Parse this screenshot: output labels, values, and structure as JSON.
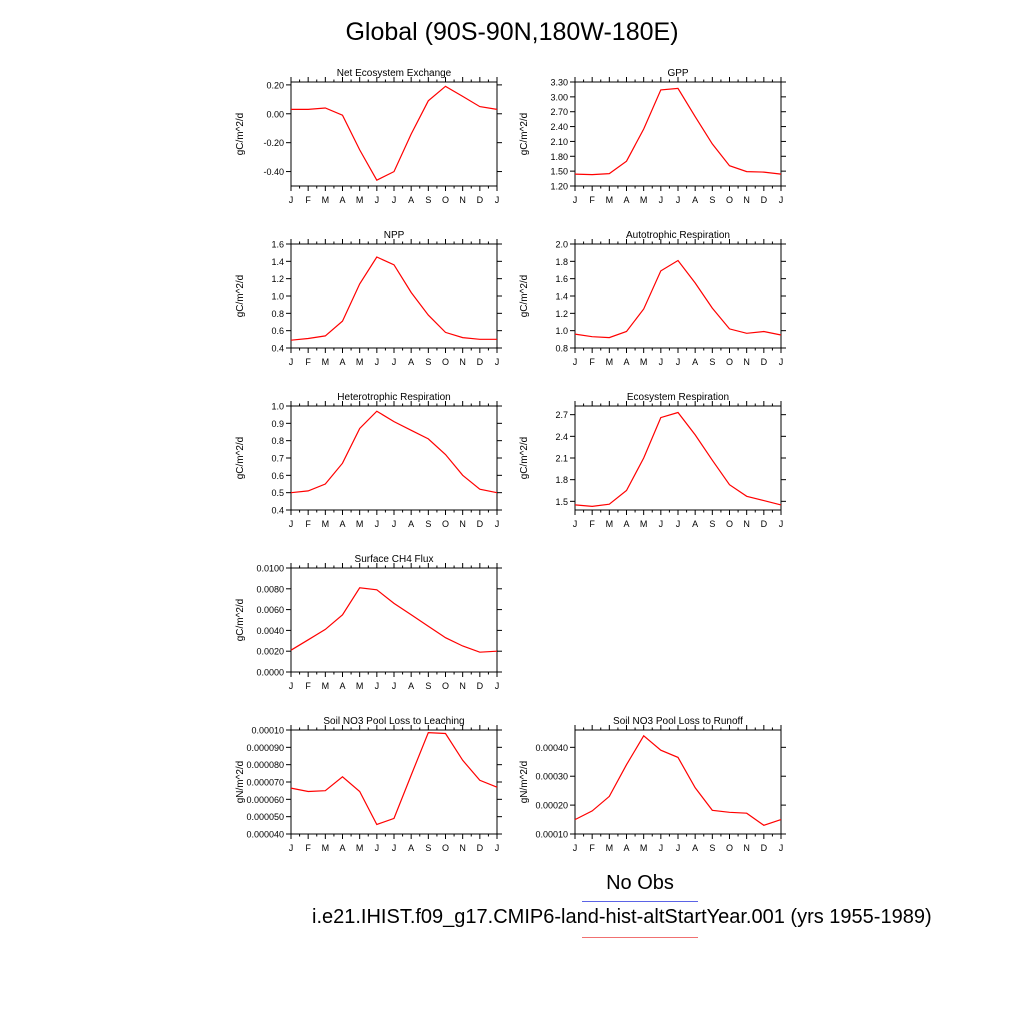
{
  "title": "Global (90S-90N,180W-180E)",
  "legend": {
    "obs_label": "No Obs",
    "obs_color": "#5b63e6",
    "case_label": "i.e21.IHIST.f09_g17.CMIP6-land-hist-altStartYear.001 (yrs 1955-1989)",
    "case_color": "#ff0000"
  },
  "chart_data": [
    {
      "type": "line",
      "title": "Net Ecosystem Exchange",
      "ylabel": "gC/m^2/d",
      "categories": [
        "J",
        "F",
        "M",
        "A",
        "M",
        "J",
        "J",
        "A",
        "S",
        "O",
        "N",
        "D",
        "J"
      ],
      "ylim": [
        -0.5,
        0.22
      ],
      "yticks": [
        0.2,
        0.0,
        -0.2,
        -0.4
      ],
      "yticklabels": [
        "0.20",
        "0.00",
        "-0.20",
        "-0.40"
      ],
      "series": [
        {
          "color": "#ff0000",
          "values": [
            0.03,
            0.03,
            0.04,
            -0.01,
            -0.25,
            -0.46,
            -0.4,
            -0.14,
            0.09,
            0.19,
            0.12,
            0.05,
            0.03
          ]
        }
      ]
    },
    {
      "type": "line",
      "title": "GPP",
      "ylabel": "gC/m^2/d",
      "categories": [
        "J",
        "F",
        "M",
        "A",
        "M",
        "J",
        "J",
        "A",
        "S",
        "O",
        "N",
        "D",
        "J"
      ],
      "ylim": [
        1.2,
        3.3
      ],
      "yticks": [
        3.3,
        3.0,
        2.7,
        2.4,
        2.1,
        1.8,
        1.5,
        1.2
      ],
      "yticklabels": [
        "3.30",
        "3.00",
        "2.70",
        "2.40",
        "2.10",
        "1.80",
        "1.50",
        "1.20"
      ],
      "series": [
        {
          "color": "#ff0000",
          "values": [
            1.44,
            1.43,
            1.45,
            1.7,
            2.35,
            3.14,
            3.17,
            2.6,
            2.05,
            1.61,
            1.49,
            1.48,
            1.44
          ]
        }
      ]
    },
    {
      "type": "line",
      "title": "NPP",
      "ylabel": "gC/m^2/d",
      "categories": [
        "J",
        "F",
        "M",
        "A",
        "M",
        "J",
        "J",
        "A",
        "S",
        "O",
        "N",
        "D",
        "J"
      ],
      "ylim": [
        0.4,
        1.6
      ],
      "yticks": [
        1.6,
        1.4,
        1.2,
        1.0,
        0.8,
        0.6,
        0.4
      ],
      "yticklabels": [
        "1.6",
        "1.4",
        "1.2",
        "1.0",
        "0.8",
        "0.6",
        "0.4"
      ],
      "series": [
        {
          "color": "#ff0000",
          "values": [
            0.49,
            0.51,
            0.54,
            0.71,
            1.14,
            1.45,
            1.36,
            1.04,
            0.78,
            0.58,
            0.52,
            0.5,
            0.5
          ]
        }
      ]
    },
    {
      "type": "line",
      "title": "Autotrophic Respiration",
      "ylabel": "gC/m^2/d",
      "categories": [
        "J",
        "F",
        "M",
        "A",
        "M",
        "J",
        "J",
        "A",
        "S",
        "O",
        "N",
        "D",
        "J"
      ],
      "ylim": [
        0.8,
        2.0
      ],
      "yticks": [
        2.0,
        1.8,
        1.6,
        1.4,
        1.2,
        1.0,
        0.8
      ],
      "yticklabels": [
        "2.0",
        "1.8",
        "1.6",
        "1.4",
        "1.2",
        "1.0",
        "0.8"
      ],
      "series": [
        {
          "color": "#ff0000",
          "values": [
            0.96,
            0.93,
            0.92,
            0.99,
            1.25,
            1.69,
            1.81,
            1.55,
            1.26,
            1.02,
            0.97,
            0.99,
            0.95
          ]
        }
      ]
    },
    {
      "type": "line",
      "title": "Heterotrophic Respiration",
      "ylabel": "gC/m^2/d",
      "categories": [
        "J",
        "F",
        "M",
        "A",
        "M",
        "J",
        "J",
        "A",
        "S",
        "O",
        "N",
        "D",
        "J"
      ],
      "ylim": [
        0.4,
        1.0
      ],
      "yticks": [
        1.0,
        0.9,
        0.8,
        0.7,
        0.6,
        0.5,
        0.4
      ],
      "yticklabels": [
        "1.0",
        "0.9",
        "0.8",
        "0.7",
        "0.6",
        "0.5",
        "0.4"
      ],
      "series": [
        {
          "color": "#ff0000",
          "values": [
            0.5,
            0.51,
            0.55,
            0.67,
            0.87,
            0.97,
            0.91,
            0.86,
            0.81,
            0.72,
            0.6,
            0.52,
            0.5
          ]
        }
      ]
    },
    {
      "type": "line",
      "title": "Ecosystem Respiration",
      "ylabel": "gC/m^2/d",
      "categories": [
        "J",
        "F",
        "M",
        "A",
        "M",
        "J",
        "J",
        "A",
        "S",
        "O",
        "N",
        "D",
        "J"
      ],
      "ylim": [
        1.38,
        2.82
      ],
      "yticks": [
        2.7,
        2.4,
        2.1,
        1.8,
        1.5
      ],
      "yticklabels": [
        "2.7",
        "2.4",
        "2.1",
        "1.8",
        "1.5"
      ],
      "series": [
        {
          "color": "#ff0000",
          "values": [
            1.45,
            1.43,
            1.46,
            1.65,
            2.1,
            2.66,
            2.73,
            2.42,
            2.07,
            1.73,
            1.57,
            1.51,
            1.45
          ]
        }
      ]
    },
    {
      "type": "line",
      "title": "Surface CH4 Flux",
      "ylabel": "gC/m^2/d",
      "categories": [
        "J",
        "F",
        "M",
        "A",
        "M",
        "J",
        "J",
        "A",
        "S",
        "O",
        "N",
        "D",
        "J"
      ],
      "ylim": [
        0.0,
        0.01
      ],
      "yticks": [
        0.01,
        0.008,
        0.006,
        0.004,
        0.002,
        0.0
      ],
      "yticklabels": [
        "0.0100",
        "0.0080",
        "0.0060",
        "0.0040",
        "0.0020",
        "0.0000"
      ],
      "series": [
        {
          "color": "#ff0000",
          "values": [
            0.0021,
            0.0031,
            0.0041,
            0.0055,
            0.0081,
            0.0079,
            0.0066,
            0.0055,
            0.0044,
            0.0033,
            0.0025,
            0.0019,
            0.002
          ]
        }
      ]
    },
    {
      "type": "line",
      "title": "Soil NO3 Pool Loss to Leaching",
      "ylabel": "gN/m^2/d",
      "categories": [
        "J",
        "F",
        "M",
        "A",
        "M",
        "J",
        "J",
        "A",
        "S",
        "O",
        "N",
        "D",
        "J"
      ],
      "ylim": [
        4e-05,
        0.0001
      ],
      "yticks": [
        0.0001,
        9e-05,
        8e-05,
        7e-05,
        6e-05,
        5e-05,
        4e-05
      ],
      "yticklabels": [
        "0.00010",
        "0.000090",
        "0.000080",
        "0.000070",
        "0.000060",
        "0.000050",
        "0.000040"
      ],
      "series": [
        {
          "color": "#ff0000",
          "values": [
            6.65e-05,
            6.45e-05,
            6.5e-05,
            7.3e-05,
            6.45e-05,
            4.55e-05,
            4.9e-05,
            7.4e-05,
            9.85e-05,
            9.8e-05,
            8.25e-05,
            7.1e-05,
            6.7e-05
          ]
        }
      ]
    },
    {
      "type": "line",
      "title": "Soil NO3 Pool Loss to Runoff",
      "ylabel": "gN/m^2/d",
      "categories": [
        "J",
        "F",
        "M",
        "A",
        "M",
        "J",
        "J",
        "A",
        "S",
        "O",
        "N",
        "D",
        "J"
      ],
      "ylim": [
        0.0001,
        0.00046
      ],
      "yticks": [
        0.0004,
        0.0003,
        0.0002,
        0.0001
      ],
      "yticklabels": [
        "0.00040",
        "0.00030",
        "0.00020",
        "0.00010"
      ],
      "series": [
        {
          "color": "#ff0000",
          "values": [
            0.00015,
            0.00018,
            0.00023,
            0.00034,
            0.00044,
            0.00039,
            0.000365,
            0.00026,
            0.000182,
            0.000175,
            0.000172,
            0.00013,
            0.00015
          ]
        }
      ]
    }
  ]
}
